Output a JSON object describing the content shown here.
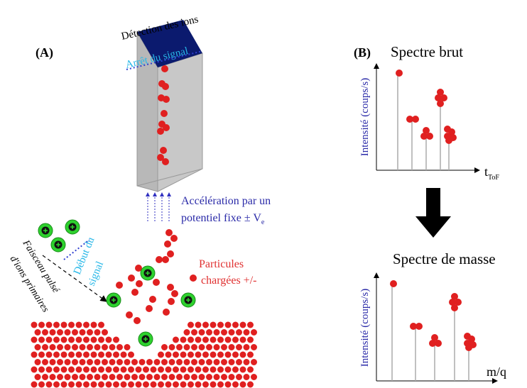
{
  "panel_a": {
    "label": "(A)",
    "detector_label": "Détection des ions",
    "stop_label": "Arrêt du signal",
    "acceleration": [
      "Accélération par un",
      "potentiel fixe ± V"
    ],
    "acceleration_subscript": "e",
    "particles_label": [
      "Particules",
      "chargées +/-"
    ],
    "start_label": [
      "Début du",
      "signal"
    ],
    "beam_label": [
      "Faisceau pulsé",
      "d'ions primaires"
    ]
  },
  "panel_b": {
    "label": "(B)",
    "raw_spectrum": {
      "title": "Spectre brut",
      "y_label": "Intensité (coups/s)",
      "x_label": "t",
      "x_subscript": "ToF"
    },
    "mass_spectrum": {
      "title": "Spectre de masse",
      "y_label": "Intensité (coups/s)",
      "x_label": "m/q"
    }
  }
}
